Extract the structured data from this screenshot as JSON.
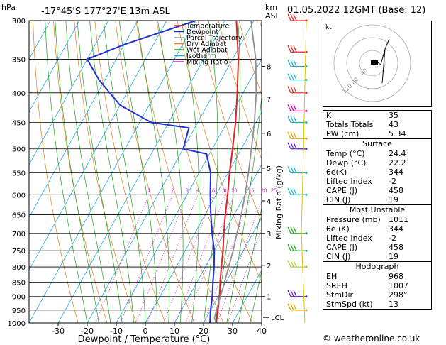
{
  "header": {
    "hpa_unit": "hPa",
    "location": "-17°45'S  177°27'E  13m  ASL",
    "km_unit": "km",
    "asl_unit": "ASL",
    "date": "01.05.2022  12GMT  (Base: 12)"
  },
  "legend": [
    {
      "label": "Temperature",
      "color": "#e0202a"
    },
    {
      "label": "Dewpoint",
      "color": "#2030d0"
    },
    {
      "label": "Parcel Trajectory",
      "color": "#909090"
    },
    {
      "label": "Dry Adiabat",
      "color": "#e08020"
    },
    {
      "label": "Wet Adiabat",
      "color": "#20a020"
    },
    {
      "label": "Isotherm",
      "color": "#20a8e0"
    },
    {
      "label": "Mixing Ratio",
      "color": "#d020d0"
    }
  ],
  "chart_data": {
    "type": "line",
    "title": "",
    "xlabel": "Dewpoint / Temperature (°C)",
    "ylabel": "hPa",
    "right_label": "Mixing Ratio (g/kg)",
    "x_ticks": [
      "-30",
      "-20",
      "-10",
      "0",
      "10",
      "20",
      "30",
      "40"
    ],
    "xlim": [
      -40,
      40
    ],
    "pressure_ticks": [
      "300",
      "350",
      "400",
      "450",
      "500",
      "550",
      "600",
      "650",
      "700",
      "750",
      "800",
      "850",
      "900",
      "950",
      "1000"
    ],
    "pressure_range": [
      300,
      1000
    ],
    "km_ticks": [
      {
        "label": "8",
        "p": 360
      },
      {
        "label": "7",
        "p": 410
      },
      {
        "label": "6",
        "p": 470
      },
      {
        "label": "5",
        "p": 540
      },
      {
        "label": "4",
        "p": 615
      },
      {
        "label": "3",
        "p": 700
      },
      {
        "label": "2",
        "p": 795
      },
      {
        "label": "1",
        "p": 900
      }
    ],
    "lcl_label": "LCL",
    "lcl_p": 978,
    "mixing_ratio_labels": [
      "1",
      "2",
      "3",
      "4",
      "6",
      "8",
      "10",
      "15",
      "20",
      "25"
    ],
    "series": [
      {
        "name": "Temperature",
        "points": [
          [
            24.4,
            1000
          ],
          [
            22.5,
            950
          ],
          [
            20.5,
            900
          ],
          [
            18,
            850
          ],
          [
            15.5,
            800
          ],
          [
            13,
            750
          ],
          [
            10,
            700
          ],
          [
            7,
            650
          ],
          [
            4,
            600
          ],
          [
            0.5,
            550
          ],
          [
            -3,
            500
          ],
          [
            -7,
            450
          ],
          [
            -12,
            400
          ],
          [
            -18,
            350
          ],
          [
            -26,
            300
          ]
        ]
      },
      {
        "name": "Dewpoint",
        "points": [
          [
            22.2,
            1000
          ],
          [
            20,
            950
          ],
          [
            18,
            900
          ],
          [
            15.5,
            850
          ],
          [
            13,
            800
          ],
          [
            10,
            750
          ],
          [
            6,
            700
          ],
          [
            2,
            650
          ],
          [
            -2,
            600
          ],
          [
            -6,
            550
          ],
          [
            -11,
            510
          ],
          [
            -20,
            500
          ],
          [
            -22,
            460
          ],
          [
            -36,
            450
          ],
          [
            -50,
            420
          ],
          [
            -62,
            380
          ],
          [
            -70,
            350
          ],
          [
            -60,
            330
          ],
          [
            -40,
            300
          ]
        ]
      },
      {
        "name": "Parcel Trajectory",
        "points": [
          [
            24.4,
            1000
          ],
          [
            22.8,
            980
          ],
          [
            22,
            950
          ],
          [
            20.8,
            900
          ],
          [
            19.5,
            850
          ],
          [
            18,
            800
          ],
          [
            16.5,
            750
          ],
          [
            14.5,
            700
          ],
          [
            12.5,
            650
          ],
          [
            10,
            600
          ],
          [
            7,
            550
          ],
          [
            3.5,
            500
          ],
          [
            -0.5,
            450
          ],
          [
            -5.5,
            400
          ],
          [
            -12,
            350
          ],
          [
            -21,
            300
          ]
        ]
      }
    ]
  },
  "hodograph": {
    "unit": "kt",
    "ring_labels": [
      "40",
      "80",
      "120"
    ]
  },
  "indices": {
    "top": [
      {
        "label": "K",
        "value": "35"
      },
      {
        "label": "Totals Totals",
        "value": "43"
      },
      {
        "label": "PW (cm)",
        "value": "5.34"
      }
    ],
    "surface": {
      "title": "Surface",
      "rows": [
        {
          "label": "Temp (°C)",
          "value": "24.4"
        },
        {
          "label": "Dewp (°C)",
          "value": "22.2"
        },
        {
          "label": "θe(K)",
          "value": "344"
        },
        {
          "label": "Lifted Index",
          "value": "-2"
        },
        {
          "label": "CAPE (J)",
          "value": "458"
        },
        {
          "label": "CIN (J)",
          "value": "19"
        }
      ]
    },
    "most_unstable": {
      "title": "Most Unstable",
      "rows": [
        {
          "label": "Pressure (mb)",
          "value": "1011"
        },
        {
          "label": "θe (K)",
          "value": "344"
        },
        {
          "label": "Lifted Index",
          "value": "-2"
        },
        {
          "label": "CAPE (J)",
          "value": "458"
        },
        {
          "label": "CIN (J)",
          "value": "19"
        }
      ]
    },
    "hodograph_table": {
      "title": "Hodograph",
      "rows": [
        {
          "label": "EH",
          "value": "968"
        },
        {
          "label": "SREH",
          "value": "1007"
        },
        {
          "label": "StmDir",
          "value": "298°"
        },
        {
          "label": "StmSpd (kt)",
          "value": "13"
        }
      ]
    }
  },
  "footer": "© weatheronline.co.uk"
}
